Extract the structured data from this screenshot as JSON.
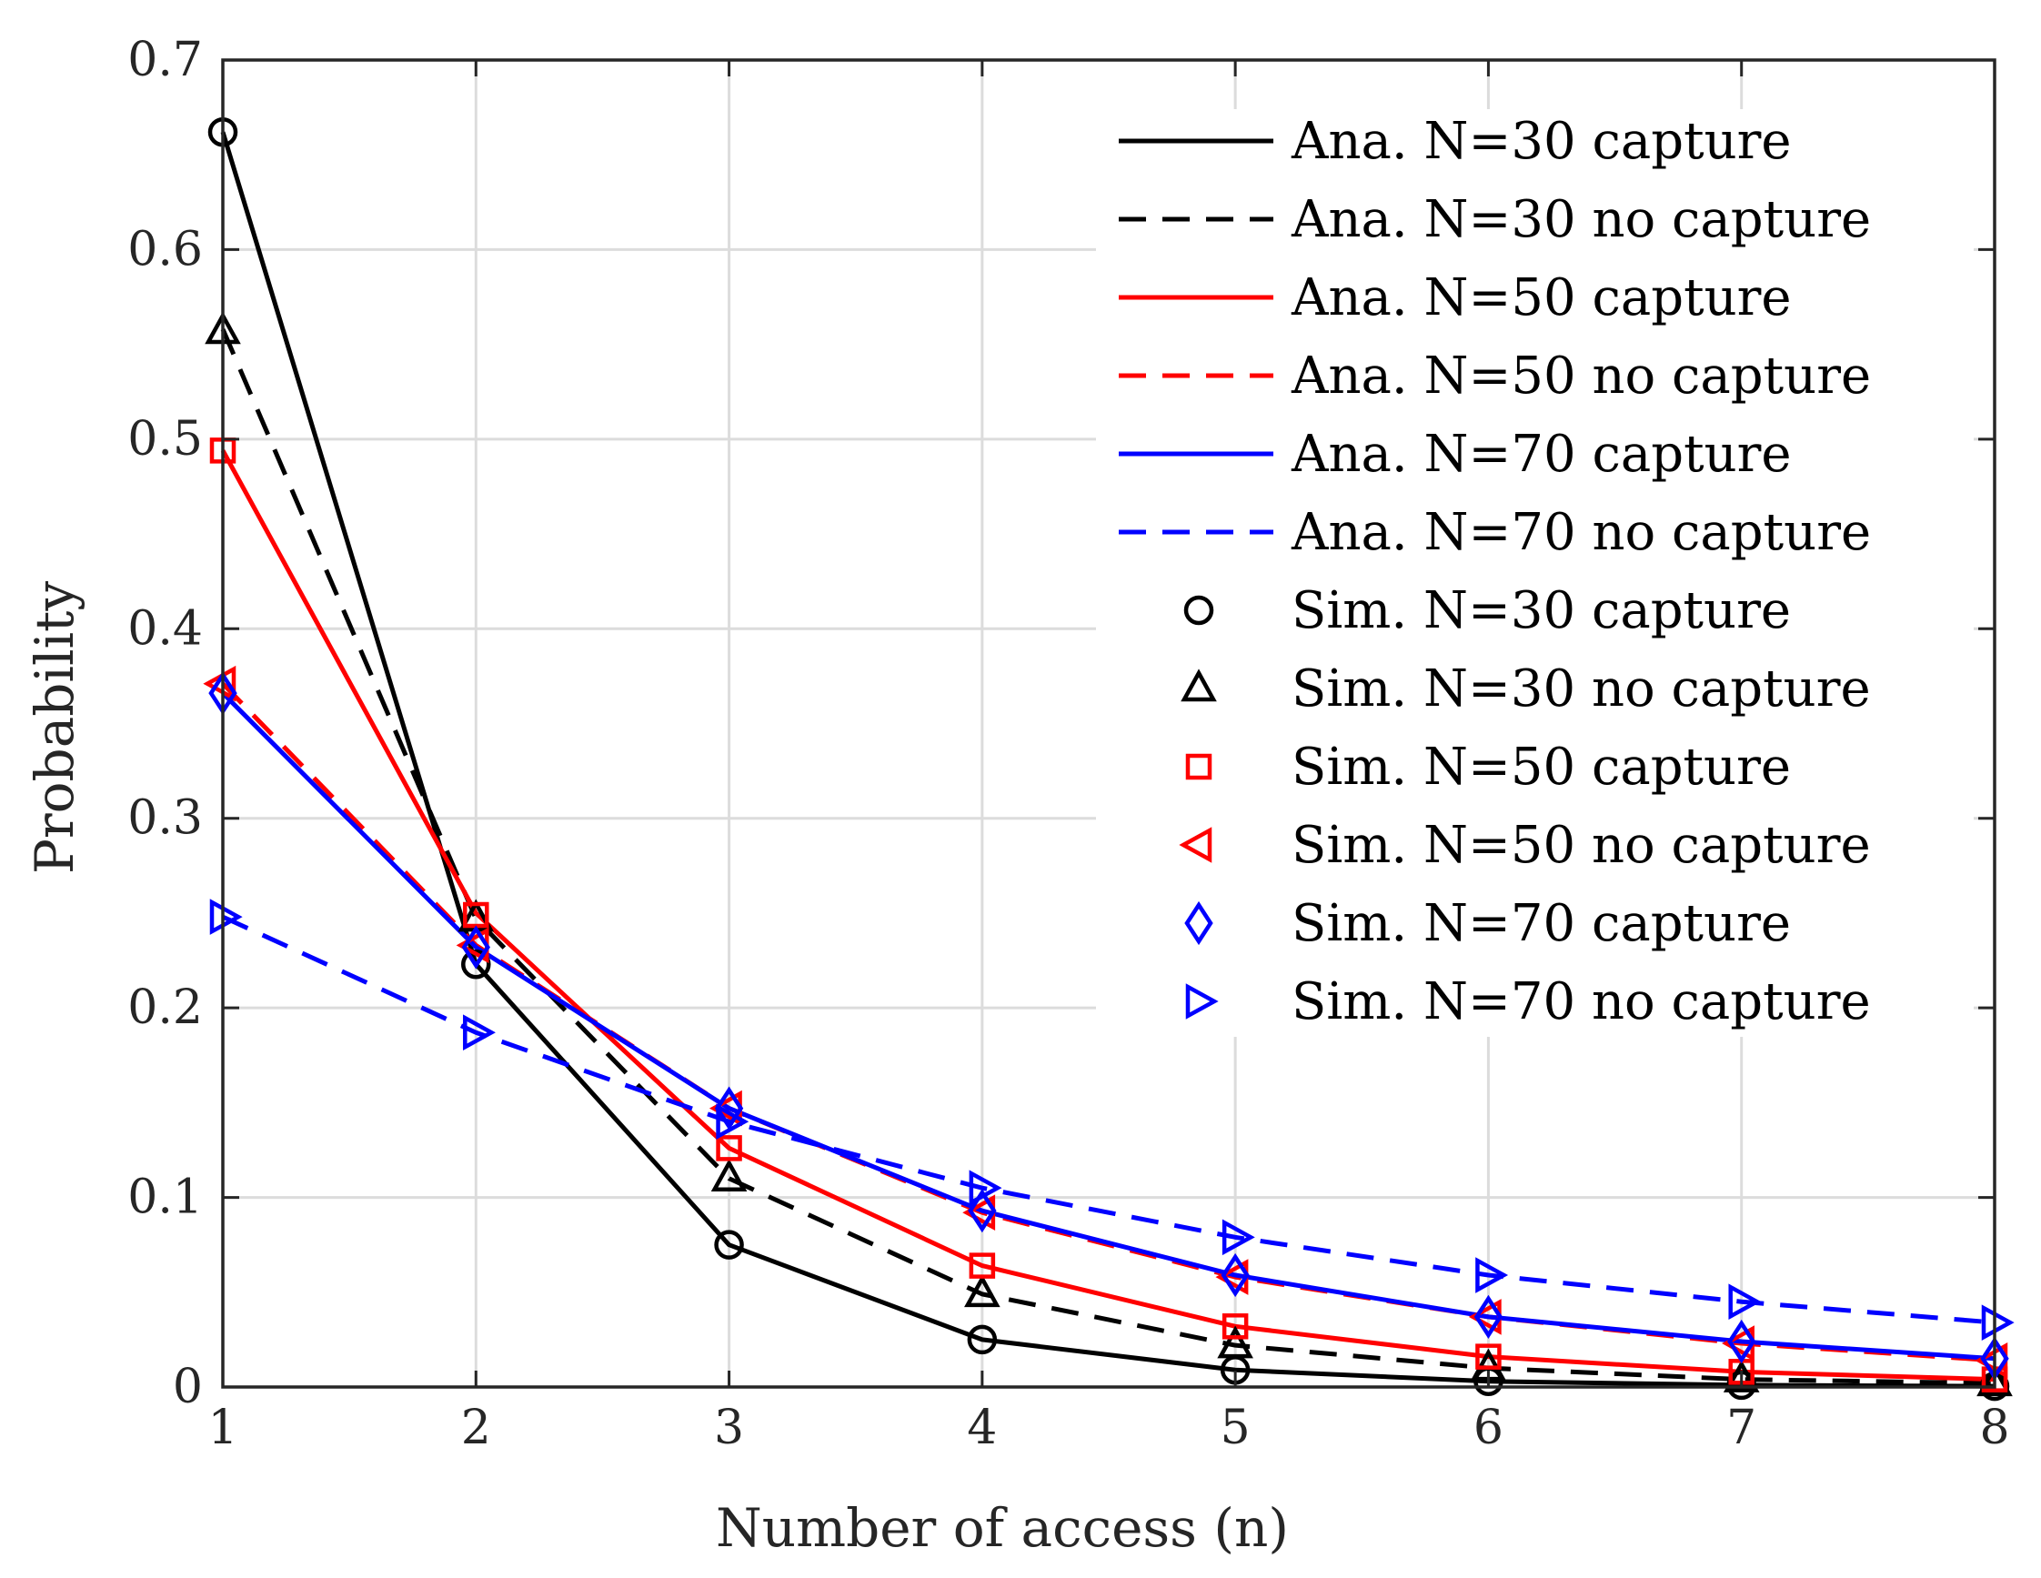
{
  "chart_data": {
    "type": "line",
    "title": "",
    "xlabel": "Number of access (n)",
    "ylabel": "Probability",
    "xlim": [
      1,
      8
    ],
    "ylim": [
      0,
      0.7
    ],
    "grid": true,
    "legend_position": "top-right",
    "x": [
      1,
      2,
      3,
      4,
      5,
      6,
      7,
      8
    ],
    "x_ticks": [
      "1",
      "2",
      "3",
      "4",
      "5",
      "6",
      "7",
      "8"
    ],
    "y_ticks": [
      "0",
      "0.1",
      "0.2",
      "0.3",
      "0.4",
      "0.5",
      "0.6",
      "0.7"
    ],
    "series": [
      {
        "name": "Ana. N=30 capture",
        "kind": "line",
        "style": "solid",
        "color": "#000000",
        "values": [
          0.662,
          0.223,
          0.075,
          0.025,
          0.009,
          0.003,
          0.001,
          0.0004
        ]
      },
      {
        "name": "Ana. N=30 no capture",
        "kind": "line",
        "style": "dashed",
        "color": "#000000",
        "values": [
          0.558,
          0.247,
          0.11,
          0.049,
          0.022,
          0.01,
          0.004,
          0.002
        ]
      },
      {
        "name": "Ana. N=50 capture",
        "kind": "line",
        "style": "solid",
        "color": "#ff0000",
        "values": [
          0.494,
          0.25,
          0.126,
          0.064,
          0.032,
          0.016,
          0.008,
          0.004
        ]
      },
      {
        "name": "Ana. N=50 no capture",
        "kind": "line",
        "style": "dashed",
        "color": "#ff0000",
        "values": [
          0.371,
          0.233,
          0.147,
          0.092,
          0.058,
          0.037,
          0.023,
          0.014
        ]
      },
      {
        "name": "Ana. N=70 capture",
        "kind": "line",
        "style": "solid",
        "color": "#0000ff",
        "values": [
          0.366,
          0.232,
          0.147,
          0.093,
          0.059,
          0.037,
          0.024,
          0.015
        ]
      },
      {
        "name": "Ana. N=70 no capture",
        "kind": "line",
        "style": "dashed",
        "color": "#0000ff",
        "values": [
          0.248,
          0.187,
          0.14,
          0.105,
          0.079,
          0.059,
          0.045,
          0.034
        ]
      },
      {
        "name": "Sim. N=30 capture",
        "kind": "marker",
        "marker": "circle",
        "color": "#000000",
        "values": [
          0.662,
          0.223,
          0.075,
          0.025,
          0.009,
          0.003,
          0.001,
          0.0004
        ]
      },
      {
        "name": "Sim. N=30 no capture",
        "kind": "marker",
        "marker": "triangle-up",
        "color": "#000000",
        "values": [
          0.557,
          0.247,
          0.11,
          0.049,
          0.022,
          0.01,
          0.004,
          0.002
        ]
      },
      {
        "name": "Sim. N=50 capture",
        "kind": "marker",
        "marker": "square",
        "color": "#ff0000",
        "values": [
          0.494,
          0.249,
          0.126,
          0.064,
          0.032,
          0.016,
          0.008,
          0.004
        ]
      },
      {
        "name": "Sim. N=50 no capture",
        "kind": "marker",
        "marker": "triangle-left",
        "color": "#ff0000",
        "values": [
          0.371,
          0.233,
          0.147,
          0.092,
          0.058,
          0.037,
          0.023,
          0.014
        ]
      },
      {
        "name": "Sim. N=70 capture",
        "kind": "marker",
        "marker": "diamond",
        "color": "#0000ff",
        "values": [
          0.366,
          0.232,
          0.147,
          0.093,
          0.059,
          0.037,
          0.024,
          0.015
        ]
      },
      {
        "name": "Sim. N=70 no capture",
        "kind": "marker",
        "marker": "triangle-right",
        "color": "#0000ff",
        "values": [
          0.248,
          0.187,
          0.14,
          0.105,
          0.079,
          0.059,
          0.045,
          0.034
        ]
      }
    ]
  }
}
